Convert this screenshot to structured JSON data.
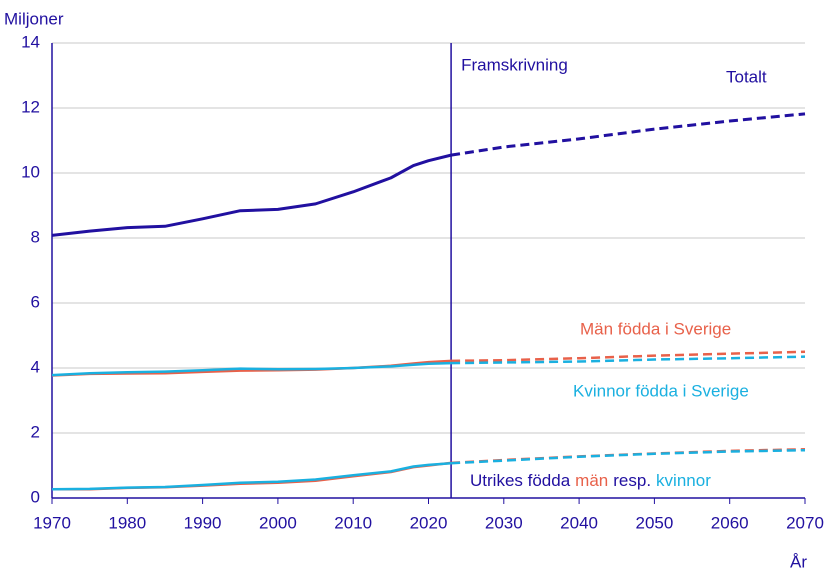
{
  "chart_data": {
    "type": "line",
    "y_label": "Miljoner",
    "x_label": "År",
    "x": [
      1970,
      1975,
      1980,
      1985,
      1990,
      1995,
      2000,
      2005,
      2010,
      2015,
      2018,
      2020,
      2023,
      2030,
      2040,
      2050,
      2060,
      2070
    ],
    "projection_start": 2023,
    "annotations": [
      "Framskrivning",
      "Utrikes födda",
      "resp."
    ],
    "series": [
      {
        "name": "Totalt",
        "color": "#2110a0",
        "values": [
          8.08,
          8.21,
          8.32,
          8.36,
          8.59,
          8.84,
          8.88,
          9.05,
          9.42,
          9.85,
          10.23,
          10.38,
          10.55,
          10.8,
          11.05,
          11.35,
          11.6,
          11.82
        ]
      },
      {
        "name": "Män födda i Sverige",
        "color": "#e8614a",
        "values": [
          3.77,
          3.82,
          3.83,
          3.84,
          3.88,
          3.92,
          3.93,
          3.95,
          4.0,
          4.07,
          4.14,
          4.18,
          4.22,
          4.24,
          4.3,
          4.38,
          4.44,
          4.5
        ]
      },
      {
        "name": "Kvinnor födda i Sverige",
        "color": "#1ab0e0",
        "values": [
          3.78,
          3.84,
          3.87,
          3.89,
          3.93,
          3.98,
          3.96,
          3.97,
          4.0,
          4.05,
          4.1,
          4.13,
          4.15,
          4.17,
          4.2,
          4.26,
          4.3,
          4.35
        ]
      },
      {
        "name": "män",
        "color": "#e8614a",
        "values": [
          0.27,
          0.27,
          0.31,
          0.33,
          0.38,
          0.44,
          0.47,
          0.53,
          0.67,
          0.8,
          0.95,
          1.0,
          1.08,
          1.17,
          1.28,
          1.37,
          1.45,
          1.5
        ]
      },
      {
        "name": "kvinnor",
        "color": "#1ab0e0",
        "values": [
          0.27,
          0.28,
          0.32,
          0.34,
          0.4,
          0.47,
          0.5,
          0.57,
          0.7,
          0.82,
          0.97,
          1.02,
          1.07,
          1.15,
          1.27,
          1.36,
          1.43,
          1.47
        ]
      }
    ],
    "xlim": [
      1970,
      2070
    ],
    "xticks": [
      1970,
      1980,
      1990,
      2000,
      2010,
      2020,
      2030,
      2040,
      2050,
      2060,
      2070
    ],
    "ylim": [
      0,
      14
    ],
    "yticks": [
      0,
      2,
      4,
      6,
      8,
      10,
      12,
      14
    ],
    "grid": true
  }
}
